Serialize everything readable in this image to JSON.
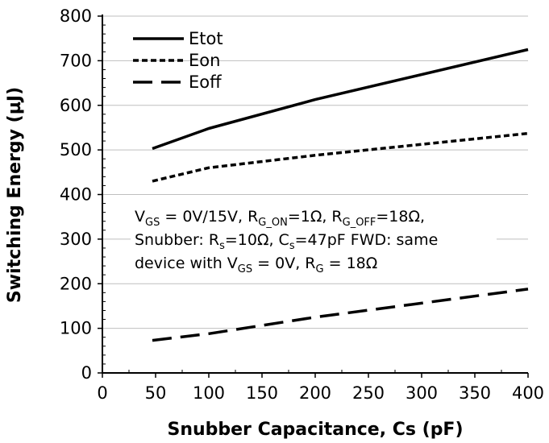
{
  "chart_data": {
    "type": "line",
    "xlabel": "Snubber Capacitance, Cs (pF)",
    "ylabel": "Switching Energy (µJ)",
    "xlim": [
      0,
      400
    ],
    "ylim": [
      0,
      800
    ],
    "x_ticks": [
      0,
      50,
      100,
      150,
      200,
      250,
      300,
      350,
      400
    ],
    "y_ticks": [
      0,
      100,
      200,
      300,
      400,
      500,
      600,
      700,
      800
    ],
    "grid": "horizontal",
    "legend_position": "top-left",
    "series": [
      {
        "name": "Etot",
        "style": "solid",
        "points": [
          [
            47,
            503
          ],
          [
            100,
            548
          ],
          [
            200,
            613
          ],
          [
            400,
            725
          ]
        ]
      },
      {
        "name": "Eon",
        "style": "short-dash",
        "points": [
          [
            47,
            430
          ],
          [
            100,
            460
          ],
          [
            200,
            488
          ],
          [
            400,
            537
          ]
        ]
      },
      {
        "name": "Eoff",
        "style": "long-dash",
        "points": [
          [
            47,
            73
          ],
          [
            100,
            88
          ],
          [
            200,
            125
          ],
          [
            400,
            188
          ]
        ]
      }
    ],
    "annotation": {
      "line1": {
        "parts": [
          {
            "t": "V"
          },
          {
            "t": "GS",
            "sub": true
          },
          {
            "t": " = 0V/15V, R"
          },
          {
            "t": "G_ON",
            "sub": true
          },
          {
            "t": "=1Ω, R"
          },
          {
            "t": "G_OFF",
            "sub": true
          },
          {
            "t": "=18Ω,"
          }
        ]
      },
      "line2": {
        "parts": [
          {
            "t": "Snubber: R"
          },
          {
            "t": "s",
            "sub": true
          },
          {
            "t": "=10Ω, C"
          },
          {
            "t": "s",
            "sub": true
          },
          {
            "t": "=47pF  FWD: same"
          }
        ]
      },
      "line3": {
        "parts": [
          {
            "t": "device with V"
          },
          {
            "t": "GS",
            "sub": true
          },
          {
            "t": " = 0V, R"
          },
          {
            "t": "G",
            "sub": true
          },
          {
            "t": " = 18Ω"
          }
        ]
      }
    }
  }
}
